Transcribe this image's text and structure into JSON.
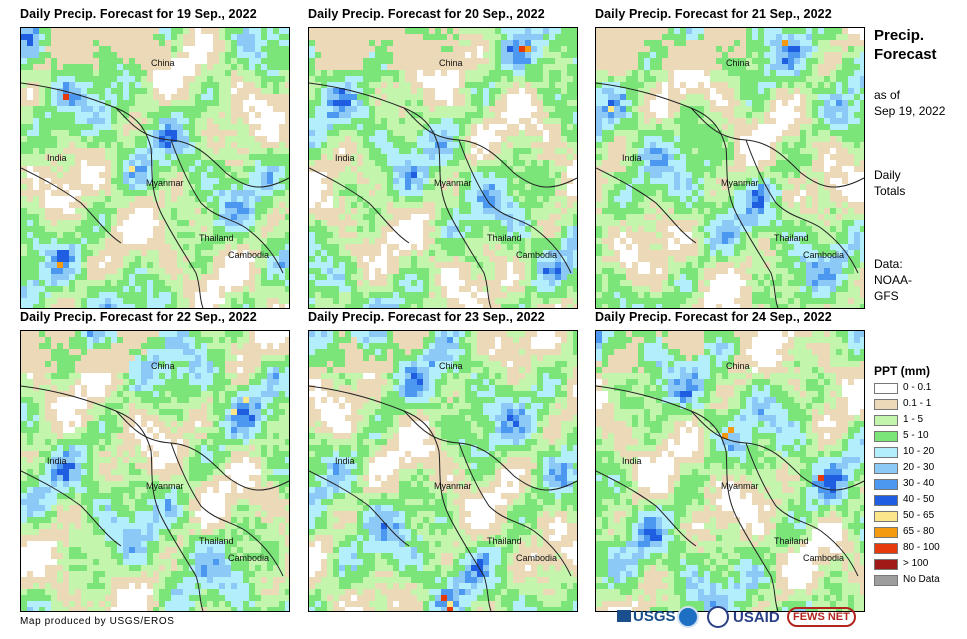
{
  "panels": [
    {
      "title": "Daily Precip. Forecast for 19 Sep., 2022"
    },
    {
      "title": "Daily Precip. Forecast for 20 Sep., 2022"
    },
    {
      "title": "Daily Precip. Forecast for 21 Sep., 2022"
    },
    {
      "title": "Daily Precip. Forecast for 22 Sep., 2022"
    },
    {
      "title": "Daily Precip. Forecast for 23 Sep., 2022"
    },
    {
      "title": "Daily Precip. Forecast for 24 Sep., 2022"
    }
  ],
  "places": {
    "china": "China",
    "india": "India",
    "myanmar": "Myanmar",
    "thailand": "Thailand",
    "cambodia": "Cambodia"
  },
  "side": {
    "title_line1": "Precip.",
    "title_line2": "Forecast",
    "asof_line1": "as of",
    "asof_line2": "Sep 19, 2022",
    "daily_line1": "Daily",
    "daily_line2": "Totals",
    "data_line1": "Data:",
    "data_line2": "NOAA-",
    "data_line3": "GFS"
  },
  "legend": {
    "title": "PPT (mm)",
    "items": [
      {
        "label": "0 - 0.1",
        "color": "#ffffff"
      },
      {
        "label": "0.1 - 1",
        "color": "#ecd9b8"
      },
      {
        "label": "1 - 5",
        "color": "#c3f5ad"
      },
      {
        "label": "5 - 10",
        "color": "#7ce57a"
      },
      {
        "label": "10 - 20",
        "color": "#b3eefc"
      },
      {
        "label": "20 - 30",
        "color": "#8dc9f7"
      },
      {
        "label": "30 - 40",
        "color": "#4c97ef"
      },
      {
        "label": "40 - 50",
        "color": "#1f5ee0"
      },
      {
        "label": "50 - 65",
        "color": "#fbe68a"
      },
      {
        "label": "65 - 80",
        "color": "#f39a10"
      },
      {
        "label": "80 - 100",
        "color": "#e63a0d"
      },
      {
        "label": "> 100",
        "color": "#a01a17"
      },
      {
        "label": "No Data",
        "color": "#9d9d9d"
      }
    ]
  },
  "footer": "Map produced by USGS/EROS",
  "logos": {
    "usgs": "USGS",
    "usaid": "USAID",
    "fewsnet": "FEWS NET"
  }
}
